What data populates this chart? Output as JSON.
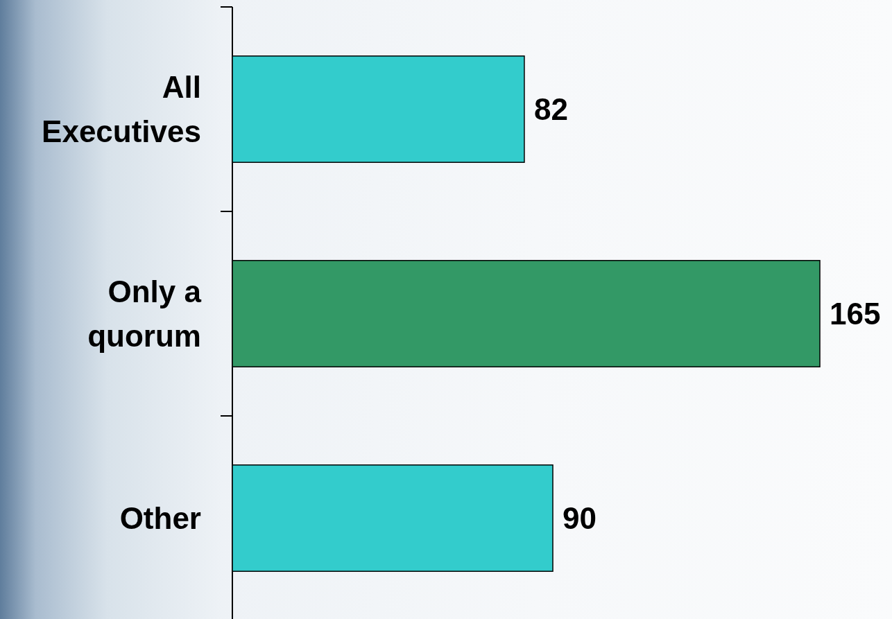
{
  "chart_data": {
    "type": "bar",
    "orientation": "horizontal",
    "categories": [
      "All\nExecutives",
      "Only a\nquorum",
      "Other"
    ],
    "values": [
      82,
      165,
      90
    ],
    "colors": [
      "#33cccc",
      "#339966",
      "#33cccc"
    ],
    "data_labels": true
  }
}
